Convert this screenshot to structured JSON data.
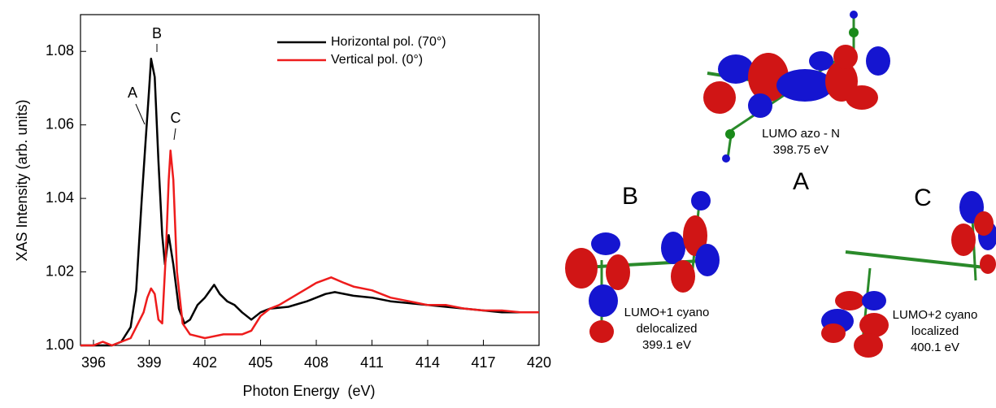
{
  "chart_data": {
    "type": "line",
    "xlabel": "Photon Energy  (eV)",
    "ylabel": "XAS Intensity (arb. units)",
    "xlim": [
      395.3,
      420
    ],
    "ylim": [
      1.0,
      1.09
    ],
    "xticks": [
      396,
      399,
      402,
      405,
      408,
      411,
      414,
      417,
      420
    ],
    "yticks": [
      {
        "value": 1.0,
        "label": "1.00"
      },
      1.02,
      1.04,
      1.06,
      1.08
    ],
    "legend": "upper right",
    "annotations": [
      "A",
      "B",
      "C"
    ],
    "series": [
      {
        "name": "Horizontal pol. (70°)",
        "color": "#000000",
        "x": [
          395.3,
          396,
          397,
          397.5,
          398,
          398.3,
          398.6,
          398.8,
          399,
          399.1,
          399.3,
          399.5,
          399.7,
          399.85,
          400.05,
          400.3,
          400.6,
          400.9,
          401.2,
          401.6,
          402,
          402.5,
          402.8,
          403.2,
          403.6,
          404,
          404.5,
          405,
          405.5,
          406.5,
          407.5,
          408.5,
          409,
          410,
          411,
          412,
          413,
          414,
          415,
          416,
          417,
          418,
          419,
          420
        ],
        "values": [
          1.0,
          1.0,
          1.0,
          1.001,
          1.005,
          1.015,
          1.04,
          1.055,
          1.07,
          1.078,
          1.073,
          1.05,
          1.03,
          1.022,
          1.03,
          1.022,
          1.01,
          1.006,
          1.007,
          1.011,
          1.013,
          1.0165,
          1.014,
          1.012,
          1.011,
          1.009,
          1.007,
          1.009,
          1.01,
          1.0105,
          1.012,
          1.014,
          1.0145,
          1.0135,
          1.013,
          1.012,
          1.0115,
          1.011,
          1.0105,
          1.01,
          1.0095,
          1.009,
          1.009,
          1.009
        ]
      },
      {
        "name": "Vertical pol. (0°)",
        "color": "#ee1c1c",
        "x": [
          395.3,
          396,
          396.5,
          397,
          397.5,
          398,
          398.4,
          398.7,
          398.9,
          399.1,
          399.3,
          399.5,
          399.7,
          399.9,
          400.05,
          400.15,
          400.3,
          400.5,
          400.8,
          401.2,
          402,
          403,
          404,
          404.5,
          405,
          405.5,
          406,
          407,
          408,
          408.8,
          409.5,
          410,
          411,
          412,
          413,
          414,
          415,
          416,
          417,
          418,
          419,
          420
        ],
        "values": [
          1.0,
          1.0,
          1.001,
          1.0,
          1.001,
          1.002,
          1.006,
          1.009,
          1.013,
          1.0155,
          1.014,
          1.007,
          1.006,
          1.025,
          1.045,
          1.053,
          1.045,
          1.02,
          1.006,
          1.003,
          1.002,
          1.003,
          1.003,
          1.004,
          1.008,
          1.01,
          1.011,
          1.014,
          1.017,
          1.0185,
          1.017,
          1.016,
          1.015,
          1.013,
          1.012,
          1.011,
          1.011,
          1.01,
          1.0095,
          1.0095,
          1.009,
          1.009
        ]
      }
    ]
  },
  "orbitals": [
    {
      "letter": "A",
      "lines": [
        "LUMO azo - N",
        "398.75 eV"
      ]
    },
    {
      "letter": "B",
      "lines": [
        "LUMO+1 cyano",
        "delocalized",
        "399.1 eV"
      ]
    },
    {
      "letter": "C",
      "lines": [
        "LUMO+2 cyano",
        "localized",
        "400.1 eV"
      ]
    }
  ]
}
